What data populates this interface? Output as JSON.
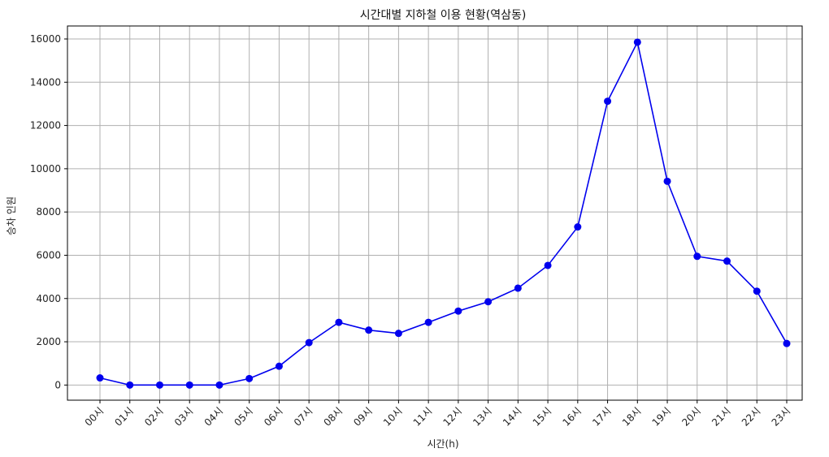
{
  "chart_data": {
    "type": "line",
    "title": "시간대별 지하철 이용 현황(역삼동)",
    "xlabel": "시간(h)",
    "ylabel": "승차 인원",
    "categories": [
      "00시",
      "01시",
      "02시",
      "03시",
      "04시",
      "05시",
      "06시",
      "07시",
      "08시",
      "09시",
      "10시",
      "11시",
      "12시",
      "13시",
      "14시",
      "15시",
      "16시",
      "17시",
      "18시",
      "19시",
      "20시",
      "21시",
      "22시",
      "23시"
    ],
    "series": [
      {
        "values": [
          330,
          0,
          0,
          0,
          0,
          300,
          870,
          1960,
          2900,
          2540,
          2390,
          2900,
          3420,
          3850,
          4480,
          5530,
          7310,
          13120,
          15850,
          9420,
          5950,
          5730,
          4340,
          1920
        ],
        "color": "#0000ee",
        "marker": "circle"
      }
    ],
    "ylim": [
      -700,
      16600
    ],
    "yticks": [
      0,
      2000,
      4000,
      6000,
      8000,
      10000,
      12000,
      14000,
      16000
    ],
    "grid": true
  }
}
